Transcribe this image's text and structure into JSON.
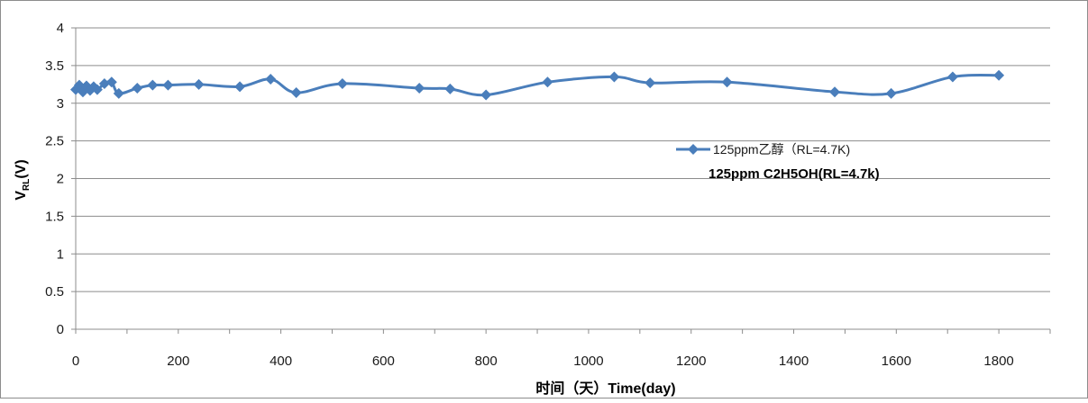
{
  "chart_data": {
    "type": "line",
    "xlabel": "时间（天）Time(day)",
    "ylabel_main": "V",
    "ylabel_sub": "RL",
    "ylabel_unit": "(V)",
    "xlim": [
      0,
      1900
    ],
    "ylim": [
      0,
      4
    ],
    "x_ticks": [
      0,
      200,
      400,
      600,
      800,
      1000,
      1200,
      1400,
      1600,
      1800
    ],
    "y_ticks": [
      "0",
      "0.5",
      "1",
      "1.5",
      "2",
      "2.5",
      "3",
      "3.5",
      "4"
    ],
    "grid": true,
    "legend_position": "right",
    "series": [
      {
        "name": "125ppm乙醇（RL=4.7K)",
        "color": "#4a7ebb",
        "marker": "diamond",
        "x": [
          0,
          7,
          14,
          21,
          28,
          35,
          42,
          56,
          70,
          84,
          120,
          150,
          180,
          240,
          320,
          380,
          430,
          520,
          670,
          730,
          800,
          920,
          1050,
          1120,
          1270,
          1480,
          1590,
          1710,
          1800
        ],
        "y": [
          3.18,
          3.24,
          3.15,
          3.23,
          3.17,
          3.22,
          3.18,
          3.26,
          3.28,
          3.13,
          3.2,
          3.24,
          3.24,
          3.25,
          3.22,
          3.32,
          3.14,
          3.26,
          3.2,
          3.19,
          3.11,
          3.28,
          3.35,
          3.27,
          3.28,
          3.15,
          3.13,
          3.35,
          3.37
        ]
      }
    ],
    "annotation": "125ppm C2H5OH(RL=4.7k)"
  }
}
